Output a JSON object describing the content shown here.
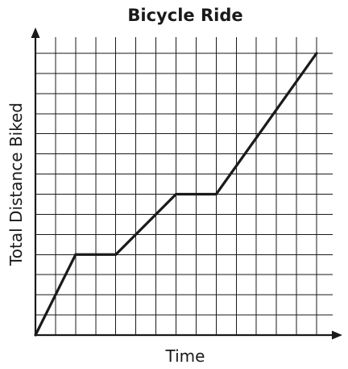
{
  "chart_data": {
    "type": "line",
    "title": "Bicycle Ride",
    "xlabel": "Time",
    "ylabel": "Total Distance Biked",
    "xlim": [
      0,
      14.8
    ],
    "ylim": [
      0,
      14.8
    ],
    "grid": true,
    "grid_step": 1,
    "ticks_labeled": false,
    "series": [
      {
        "name": "Total Distance Biked",
        "x": [
          0,
          2,
          4,
          7,
          9,
          14
        ],
        "y": [
          0,
          4,
          4,
          7,
          7,
          14
        ]
      }
    ]
  }
}
